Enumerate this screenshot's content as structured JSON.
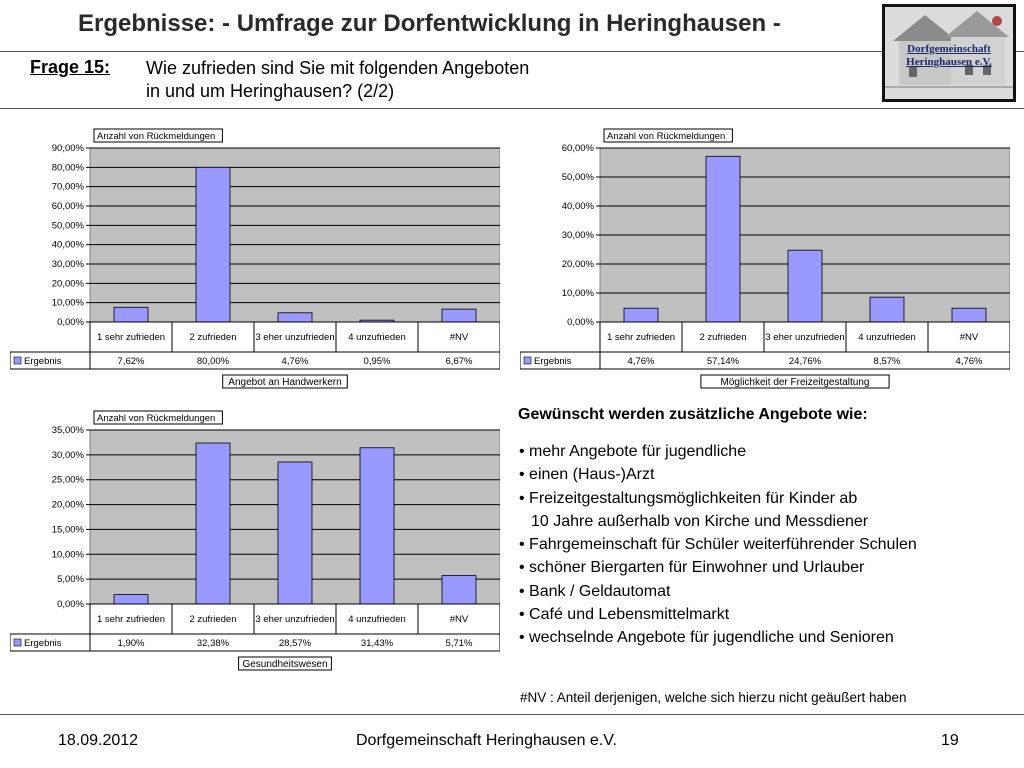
{
  "header": {
    "title": "Ergebnisse: - Umfrage zur Dorfentwicklung in Heringhausen -",
    "question_label": "Frage 15:",
    "question_line1": "Wie zufrieden sind Sie mit folgenden Angeboten",
    "question_line2": "in und um Heringhausen? (2/2)"
  },
  "logo": {
    "line1": "Dorfgemeinschaft",
    "line2": "Heringhausen e.V."
  },
  "chart_data": [
    {
      "type": "bar",
      "title": "Angebot an Handwerkern",
      "field_label": "Anzahl von Rückmeldungen",
      "legend": "Ergebnis",
      "categories": [
        "1 sehr zufrieden",
        "2 zufrieden",
        "3 eher unzufrieden",
        "4 unzufrieden",
        "#NV"
      ],
      "values": [
        7.62,
        80.0,
        4.76,
        0.95,
        6.67
      ],
      "value_labels": [
        "7,62%",
        "80,00%",
        "4,76%",
        "0,95%",
        "6,67%"
      ],
      "ylim": [
        0,
        90
      ],
      "yticks": [
        "0,00%",
        "10,00%",
        "20,00%",
        "30,00%",
        "40,00%",
        "50,00%",
        "60,00%",
        "70,00%",
        "80,00%",
        "90,00%"
      ],
      "bar_color": "#9999ff",
      "grid": true
    },
    {
      "type": "bar",
      "title": "Möglichkeit der Freizeitgestaltung",
      "field_label": "Anzahl von Rückmeldungen",
      "legend": "Ergebnis",
      "categories": [
        "1 sehr zufrieden",
        "2 zufrieden",
        "3 eher unzufrieden",
        "4 unzufrieden",
        "#NV"
      ],
      "values": [
        4.76,
        57.14,
        24.76,
        8.57,
        4.76
      ],
      "value_labels": [
        "4,76%",
        "57,14%",
        "24,76%",
        "8,57%",
        "4,76%"
      ],
      "ylim": [
        0,
        60
      ],
      "yticks": [
        "0,00%",
        "10,00%",
        "20,00%",
        "30,00%",
        "40,00%",
        "50,00%",
        "60,00%"
      ],
      "bar_color": "#9999ff",
      "grid": true
    },
    {
      "type": "bar",
      "title": "Gesundheitswesen",
      "field_label": "Anzahl von Rückmeldungen",
      "legend": "Ergebnis",
      "categories": [
        "1 sehr zufrieden",
        "2 zufrieden",
        "3 eher unzufrieden",
        "4 unzufrieden",
        "#NV"
      ],
      "values": [
        1.9,
        32.38,
        28.57,
        31.43,
        5.71
      ],
      "value_labels": [
        "1,90%",
        "32,38%",
        "28,57%",
        "31,43%",
        "5,71%"
      ],
      "ylim": [
        0,
        35
      ],
      "yticks": [
        "0,00%",
        "5,00%",
        "10,00%",
        "15,00%",
        "20,00%",
        "25,00%",
        "30,00%",
        "35,00%"
      ],
      "bar_color": "#9999ff",
      "grid": true
    }
  ],
  "extras": {
    "title": "Gewünscht werden zusätzliche Angebote wie:",
    "items": [
      "• mehr Angebote für jugendliche",
      "• einen (Haus-)Arzt",
      "• Freizeitgestaltungsmöglichkeiten für Kinder ab",
      "10 Jahre außerhalb von Kirche und Messdiener",
      "• Fahrgemeinschaft für Schüler weiterführender Schulen",
      "• schöner Biergarten für Einwohner und Urlauber",
      "• Bank / Geldautomat",
      "• Café und Lebensmittelmarkt",
      "• wechselnde Angebote für jugendliche und Senioren"
    ],
    "nv_note": "#NV :  Anteil derjenigen, welche sich hierzu nicht geäußert haben"
  },
  "footer": {
    "date": "18.09.2012",
    "organization": "Dorfgemeinschaft Heringhausen e.V.",
    "page": "19"
  }
}
